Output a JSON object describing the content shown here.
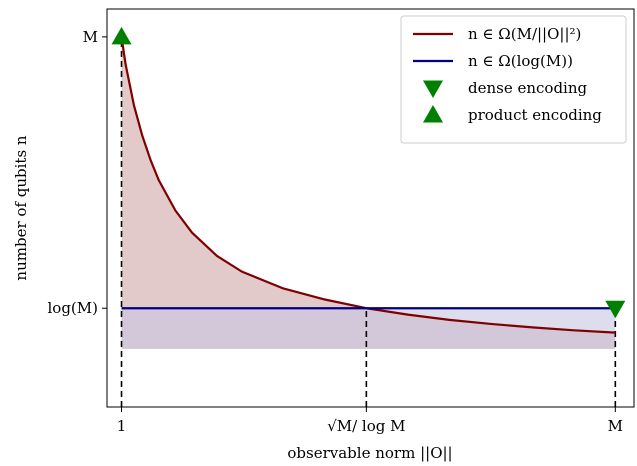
{
  "chart_data": {
    "type": "line",
    "xlabel": "observable norm ||O||",
    "ylabel": "number of qubits n",
    "xticks": [
      {
        "value": 1,
        "label": "1"
      },
      {
        "value": 60,
        "label": "√M/ log M"
      },
      {
        "value": 120,
        "label": "M"
      }
    ],
    "yticks": [
      {
        "value": 1,
        "label": "log(M)"
      },
      {
        "value": 5.67,
        "label": "M"
      }
    ],
    "xlim": [
      -2.5,
      124.5
    ],
    "ylim": [
      -0.7,
      6.15
    ],
    "grid": false,
    "legend_position": "top-right",
    "series": [
      {
        "name": "n ∈ Ω(M/||O||²)",
        "kind": "curve",
        "color": "#7f0000",
        "fill": "#d9b8b8",
        "x": [
          1,
          2,
          4,
          6,
          8,
          10,
          14,
          18,
          24,
          30,
          40,
          50,
          60,
          70,
          80,
          90,
          100,
          110,
          120
        ],
        "y": [
          5.67,
          5.19,
          4.49,
          3.97,
          3.55,
          3.2,
          2.68,
          2.3,
          1.9,
          1.63,
          1.34,
          1.15,
          1.0,
          0.89,
          0.8,
          0.73,
          0.67,
          0.62,
          0.58
        ]
      },
      {
        "name": "n ∈ Ω(log(M))",
        "kind": "hline",
        "color": "#000080",
        "fill": "#c6c6e3",
        "x": [
          1,
          120
        ],
        "y": [
          1,
          1
        ]
      }
    ],
    "fill_baseline": 0.3,
    "markers": [
      {
        "name": "dense encoding",
        "shape": "triangle-down",
        "color": "#008000",
        "x": 120,
        "y": 1
      },
      {
        "name": "product encoding",
        "shape": "triangle-up",
        "color": "#008000",
        "x": 1,
        "y": 5.67
      }
    ],
    "guides": [
      {
        "x": 1,
        "y": 5.67,
        "style": "dashed"
      },
      {
        "x": 60,
        "y": 1,
        "style": "dashed"
      },
      {
        "x": 120,
        "y": 1,
        "style": "dashed"
      }
    ]
  }
}
